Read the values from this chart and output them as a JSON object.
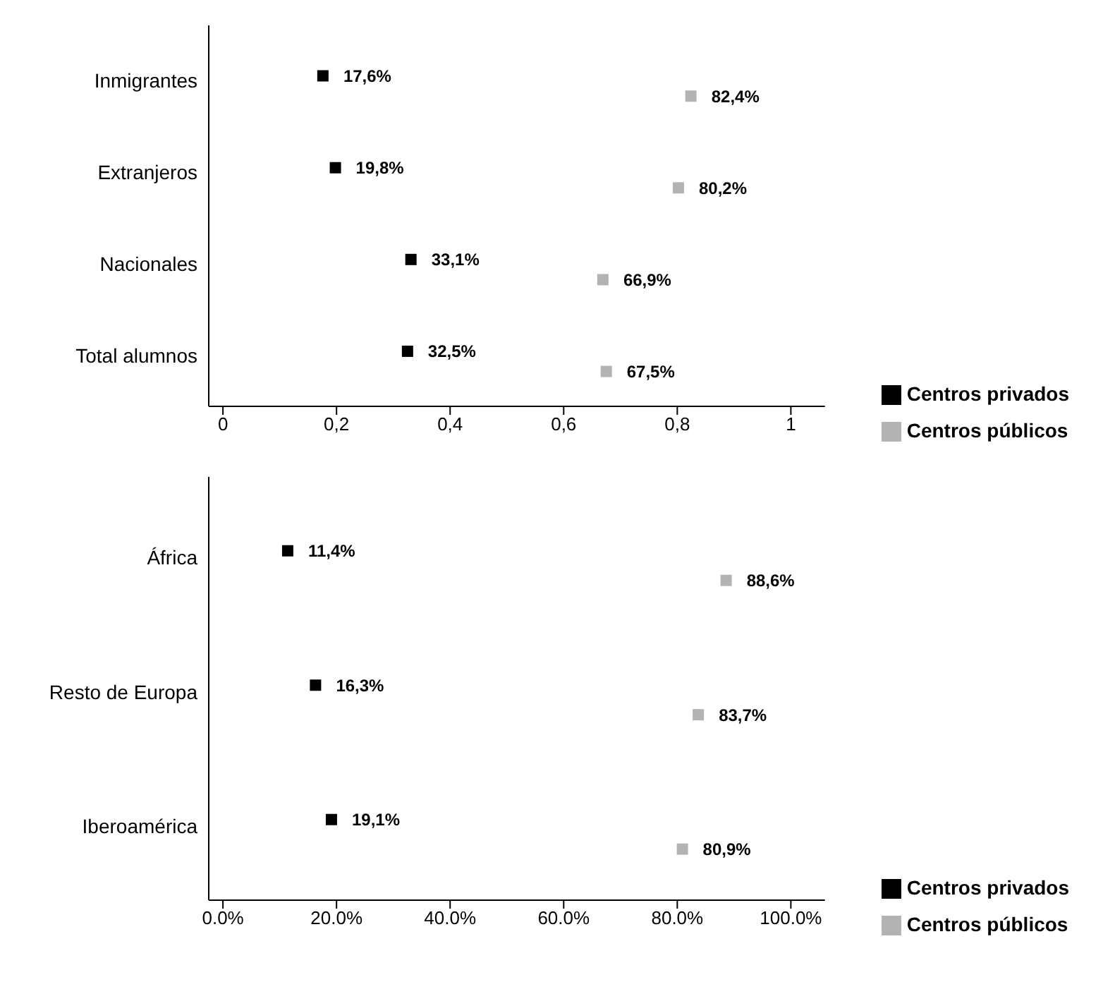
{
  "chart_data": [
    {
      "type": "scatter",
      "categories": [
        "Inmigrantes",
        "Extranjeros",
        "Nacionales",
        "Total alumnos"
      ],
      "series": [
        {
          "name": "Centros privados",
          "color": "#000000",
          "values": [
            0.176,
            0.198,
            0.331,
            0.325
          ],
          "value_labels": [
            "17,6%",
            "19,8%",
            "33,1%",
            "32,5%"
          ]
        },
        {
          "name": "Centros públicos",
          "color": "#b3b3b3",
          "values": [
            0.824,
            0.802,
            0.669,
            0.675
          ],
          "value_labels": [
            "82,4%",
            "80,2%",
            "66,9%",
            "67,5%"
          ]
        }
      ],
      "orientation": "horizontal",
      "xlim": [
        -0.025,
        1.06
      ],
      "xticks": [
        0,
        {
          "value": 0.2,
          "label": "0,2"
        },
        {
          "value": 0.4,
          "label": "0,4"
        },
        {
          "value": 0.6,
          "label": "0,6"
        },
        {
          "value": 0.8,
          "label": "0,8"
        },
        1
      ],
      "marker": "square",
      "grid": false,
      "legend": "bottom right"
    },
    {
      "type": "scatter",
      "categories": [
        "África",
        "Resto de Europa",
        "Iberoamérica"
      ],
      "series": [
        {
          "name": "Centros privados",
          "color": "#000000",
          "values": [
            11.4,
            16.3,
            19.1
          ],
          "value_labels": [
            "11,4%",
            "16,3%",
            "19,1%"
          ]
        },
        {
          "name": "Centros públicos",
          "color": "#b3b3b3",
          "values": [
            88.6,
            83.7,
            80.9
          ],
          "value_labels": [
            "88,6%",
            "83,7%",
            "80,9%"
          ]
        }
      ],
      "orientation": "horizontal",
      "xlim": [
        -2.5,
        106
      ],
      "xticks": [
        {
          "value": 0,
          "label": "0.0%"
        },
        {
          "value": 20,
          "label": "20.0%"
        },
        {
          "value": 40,
          "label": "40.0%"
        },
        {
          "value": 60,
          "label": "60.0%"
        },
        {
          "value": 80,
          "label": "80.0%"
        },
        {
          "value": 100,
          "label": "100.0%"
        }
      ],
      "marker": "square",
      "grid": false,
      "legend": "bottom right"
    }
  ]
}
